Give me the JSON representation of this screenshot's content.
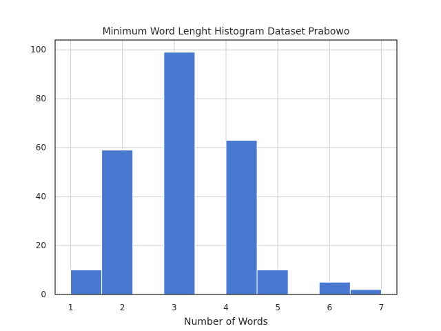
{
  "chart_data": {
    "type": "bar",
    "title": "Minimum Word Lenght Histogram Dataset Prabowo",
    "xlabel": "Number of Words",
    "ylabel": "",
    "bar_color": "#4878cf",
    "bins": [
      {
        "x0": 1.0,
        "x1": 1.6,
        "count": 10
      },
      {
        "x0": 1.6,
        "x1": 2.2,
        "count": 59
      },
      {
        "x0": 2.2,
        "x1": 2.8,
        "count": 0
      },
      {
        "x0": 2.8,
        "x1": 3.4,
        "count": 99
      },
      {
        "x0": 3.4,
        "x1": 4.0,
        "count": 0
      },
      {
        "x0": 4.0,
        "x1": 4.6,
        "count": 63
      },
      {
        "x0": 4.6,
        "x1": 5.2,
        "count": 10
      },
      {
        "x0": 5.2,
        "x1": 5.8,
        "count": 0
      },
      {
        "x0": 5.8,
        "x1": 6.4,
        "count": 5
      },
      {
        "x0": 6.4,
        "x1": 7.0,
        "count": 2
      }
    ],
    "xlim": [
      0.7,
      7.3
    ],
    "ylim": [
      0,
      104
    ],
    "xticks": [
      1,
      2,
      3,
      4,
      5,
      6,
      7
    ],
    "yticks": [
      0,
      20,
      40,
      60,
      80,
      100
    ],
    "grid": true
  }
}
